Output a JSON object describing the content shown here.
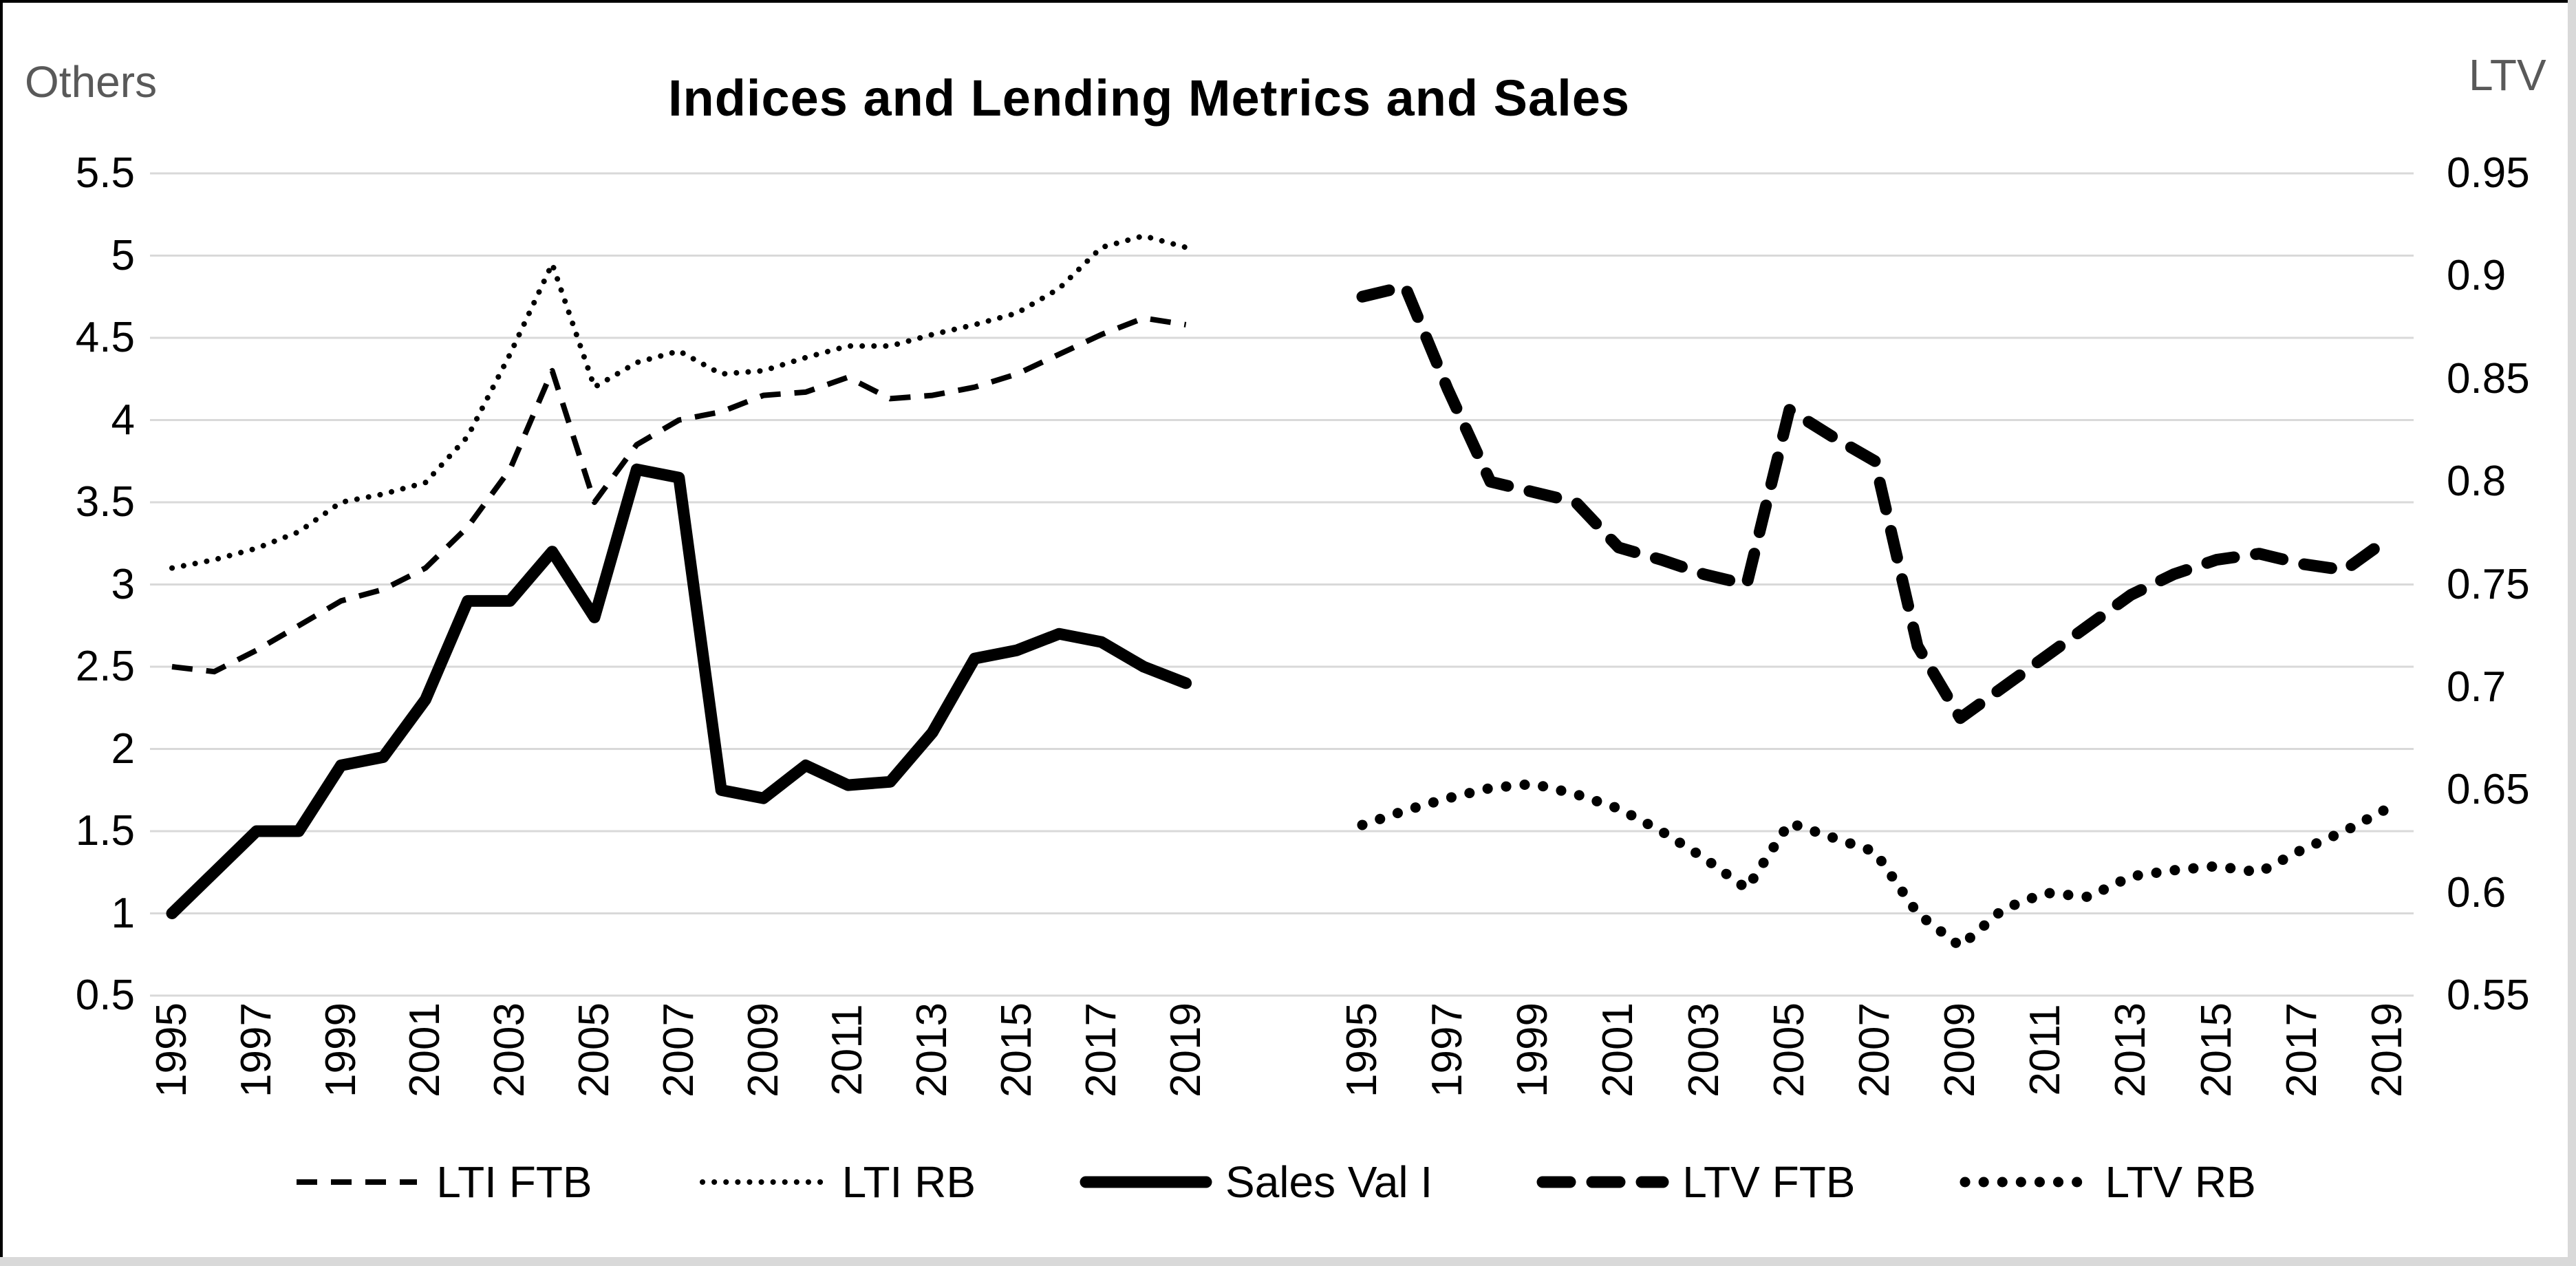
{
  "page": {
    "title": "Indices and Lending Metrics and Sales",
    "left_axis_title": "Others",
    "right_axis_title": "LTV"
  },
  "chart_data": {
    "type": "line",
    "title": "Indices and Lending Metrics and Sales",
    "grid": true,
    "legend_position": "bottom",
    "background": "#ffffff",
    "colors": {
      "line": "#000000",
      "gridline": "#d9d9d9",
      "axis_title": "#595959",
      "text": "#000000"
    },
    "x": [
      1995,
      1996,
      1997,
      1998,
      1999,
      2000,
      2001,
      2002,
      2003,
      2004,
      2005,
      2006,
      2007,
      2008,
      2009,
      2010,
      2011,
      2012,
      2013,
      2014,
      2015,
      2016,
      2017,
      2018,
      2019
    ],
    "x_tick_labels": [
      "1995",
      "1997",
      "1999",
      "2001",
      "2003",
      "2005",
      "2007",
      "2009",
      "2011",
      "2013",
      "2015",
      "2017",
      "2019"
    ],
    "left_axis": {
      "label": "Others",
      "min": 0.5,
      "max": 5.5,
      "tick_labels": [
        "5.5",
        "5",
        "4.5",
        "4",
        "3.5",
        "3",
        "2.5",
        "2",
        "1.5",
        "1",
        "0.5"
      ]
    },
    "right_axis": {
      "label": "LTV",
      "min": 0.55,
      "max": 0.95,
      "tick_labels": [
        "0.95",
        "0.9",
        "0.85",
        "0.8",
        "0.75",
        "0.7",
        "0.65",
        "0.6",
        "0.55"
      ]
    },
    "panels": [
      {
        "name": "left",
        "axis": "left",
        "series": [
          {
            "name": "LTI FTB",
            "style": "dashed-thin",
            "values": [
              2.5,
              2.47,
              2.6,
              2.75,
              2.9,
              2.97,
              3.1,
              3.35,
              3.7,
              4.3,
              3.5,
              3.85,
              4.0,
              4.05,
              4.15,
              4.17,
              4.26,
              4.13,
              4.15,
              4.2,
              4.28,
              4.4,
              4.52,
              4.62,
              4.58
            ]
          },
          {
            "name": "LTI RB",
            "style": "dotted-thin",
            "values": [
              3.1,
              3.15,
              3.22,
              3.32,
              3.5,
              3.55,
              3.62,
              3.9,
              4.4,
              4.95,
              4.2,
              4.35,
              4.42,
              4.28,
              4.3,
              4.38,
              4.45,
              4.45,
              4.52,
              4.58,
              4.65,
              4.8,
              5.05,
              5.12,
              5.05
            ]
          },
          {
            "name": "Sales Val I",
            "style": "solid-thick",
            "values": [
              1.0,
              1.25,
              1.5,
              1.5,
              1.9,
              1.95,
              2.3,
              2.9,
              2.9,
              3.2,
              2.8,
              3.7,
              3.65,
              1.75,
              1.7,
              1.9,
              1.78,
              1.8,
              2.1,
              2.55,
              2.6,
              2.7,
              2.65,
              2.5,
              2.4
            ]
          }
        ]
      },
      {
        "name": "right",
        "axis": "right",
        "series": [
          {
            "name": "LTV FTB",
            "style": "dashed-thick",
            "values": [
              0.89,
              0.895,
              0.845,
              0.8,
              0.795,
              0.79,
              0.768,
              0.762,
              0.755,
              0.75,
              0.835,
              0.822,
              0.81,
              0.72,
              0.685,
              0.7,
              0.715,
              0.73,
              0.745,
              0.755,
              0.762,
              0.765,
              0.76,
              0.757,
              0.772
            ]
          },
          {
            "name": "LTV RB",
            "style": "dotted-thick",
            "values": [
              0.633,
              0.64,
              0.646,
              0.651,
              0.653,
              0.648,
              0.641,
              0.63,
              0.617,
              0.602,
              0.634,
              0.627,
              0.62,
              0.59,
              0.574,
              0.592,
              0.6,
              0.598,
              0.608,
              0.611,
              0.613,
              0.61,
              0.621,
              0.63,
              0.641
            ]
          }
        ]
      }
    ],
    "legend": [
      {
        "label": "LTI FTB",
        "style": "dashed-thin"
      },
      {
        "label": "LTI RB",
        "style": "dotted-thin"
      },
      {
        "label": "Sales Val I",
        "style": "solid-thick"
      },
      {
        "label": "LTV FTB",
        "style": "dashed-thick"
      },
      {
        "label": "LTV RB",
        "style": "dotted-thick"
      }
    ]
  }
}
